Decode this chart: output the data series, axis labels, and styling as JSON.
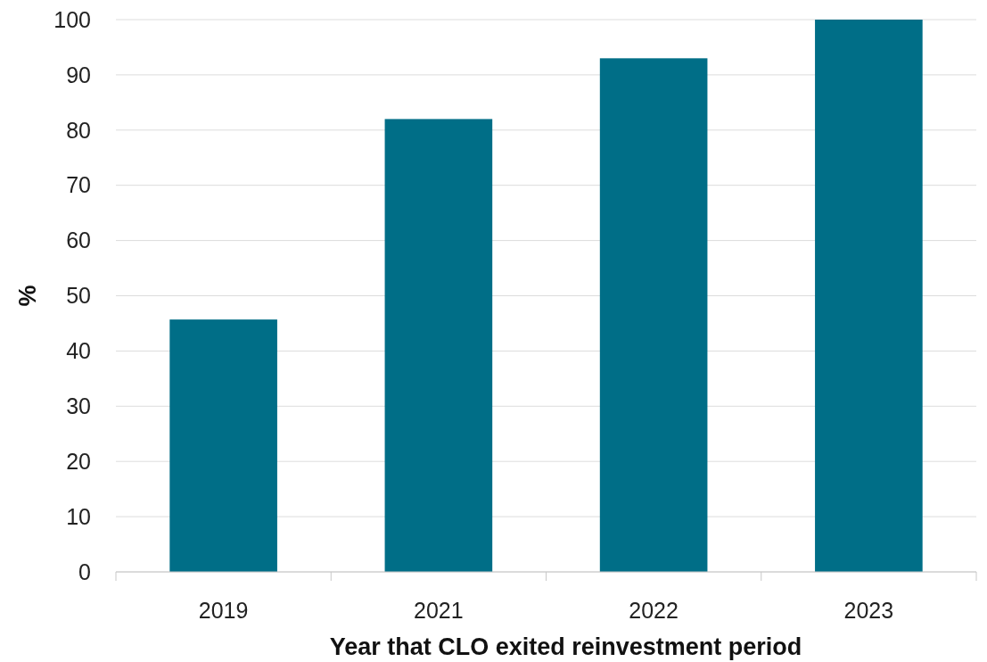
{
  "chart_data": {
    "type": "bar",
    "xlabel": "Year that CLO exited reinvestment period",
    "ylabel": "%",
    "categories": [
      "2019",
      "2021",
      "2022",
      "2023"
    ],
    "values": [
      45.7,
      82,
      93,
      100
    ],
    "color": "#006e87",
    "ylim": [
      0,
      100
    ],
    "yticks": [
      0,
      10,
      20,
      30,
      40,
      50,
      60,
      70,
      80,
      90,
      100
    ],
    "grid": "y"
  }
}
